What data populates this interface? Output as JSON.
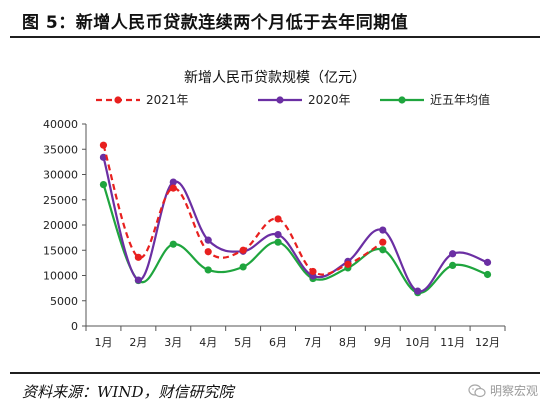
{
  "figure": {
    "title": "图 5：新增人民币贷款连续两个月低于去年同期值",
    "source": "资料来源：WIND，财信研究院",
    "watermark": "明察宏观"
  },
  "chart_data": {
    "type": "line",
    "title": "新增人民币贷款规模（亿元）",
    "xlabel": "",
    "ylabel": "",
    "categories": [
      "1月",
      "2月",
      "3月",
      "4月",
      "5月",
      "6月",
      "7月",
      "8月",
      "9月",
      "10月",
      "11月",
      "12月"
    ],
    "ylim": [
      0,
      40000
    ],
    "yticks": [
      0,
      5000,
      10000,
      15000,
      20000,
      25000,
      30000,
      35000,
      40000
    ],
    "grid": false,
    "legend_position": "top",
    "series": [
      {
        "name": "2021年",
        "color": "#e8201f",
        "dash": true,
        "values": [
          35800,
          13600,
          27300,
          14700,
          15000,
          21200,
          10800,
          12200,
          16600,
          null,
          null,
          null
        ]
      },
      {
        "name": "2020年",
        "color": "#6b2fa3",
        "dash": false,
        "values": [
          33400,
          9100,
          28500,
          17000,
          14800,
          18100,
          9900,
          12800,
          19000,
          6900,
          14300,
          12600
        ]
      },
      {
        "name": "近五年均值",
        "color": "#1fa53e",
        "dash": false,
        "values": [
          28000,
          9000,
          16200,
          11100,
          11700,
          16600,
          9400,
          11500,
          15100,
          6600,
          12000,
          10200
        ]
      }
    ]
  }
}
